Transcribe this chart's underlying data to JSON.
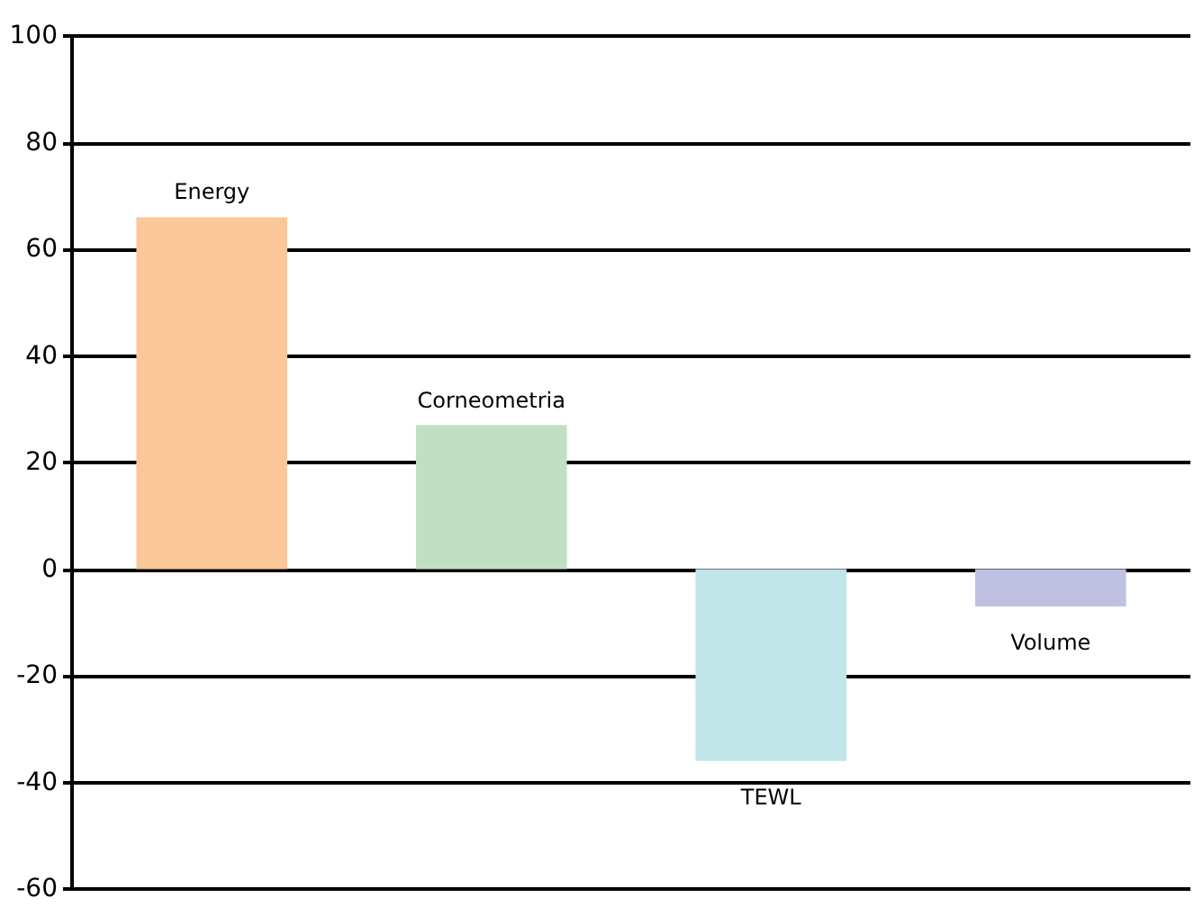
{
  "chart_data": {
    "type": "bar",
    "categories": [
      "Energy",
      "Corneometria",
      "TEWL",
      "Volume"
    ],
    "values": [
      66,
      27,
      -36,
      -7
    ],
    "colors": [
      "#fbc698",
      "#c1e0c3",
      "#c1e6e9",
      "#bfc0e2"
    ],
    "ylim": [
      -60,
      100
    ],
    "yticks": [
      -60,
      -40,
      -20,
      0,
      20,
      40,
      60,
      80,
      100
    ],
    "grid": "y",
    "tick_labels": "y"
  }
}
